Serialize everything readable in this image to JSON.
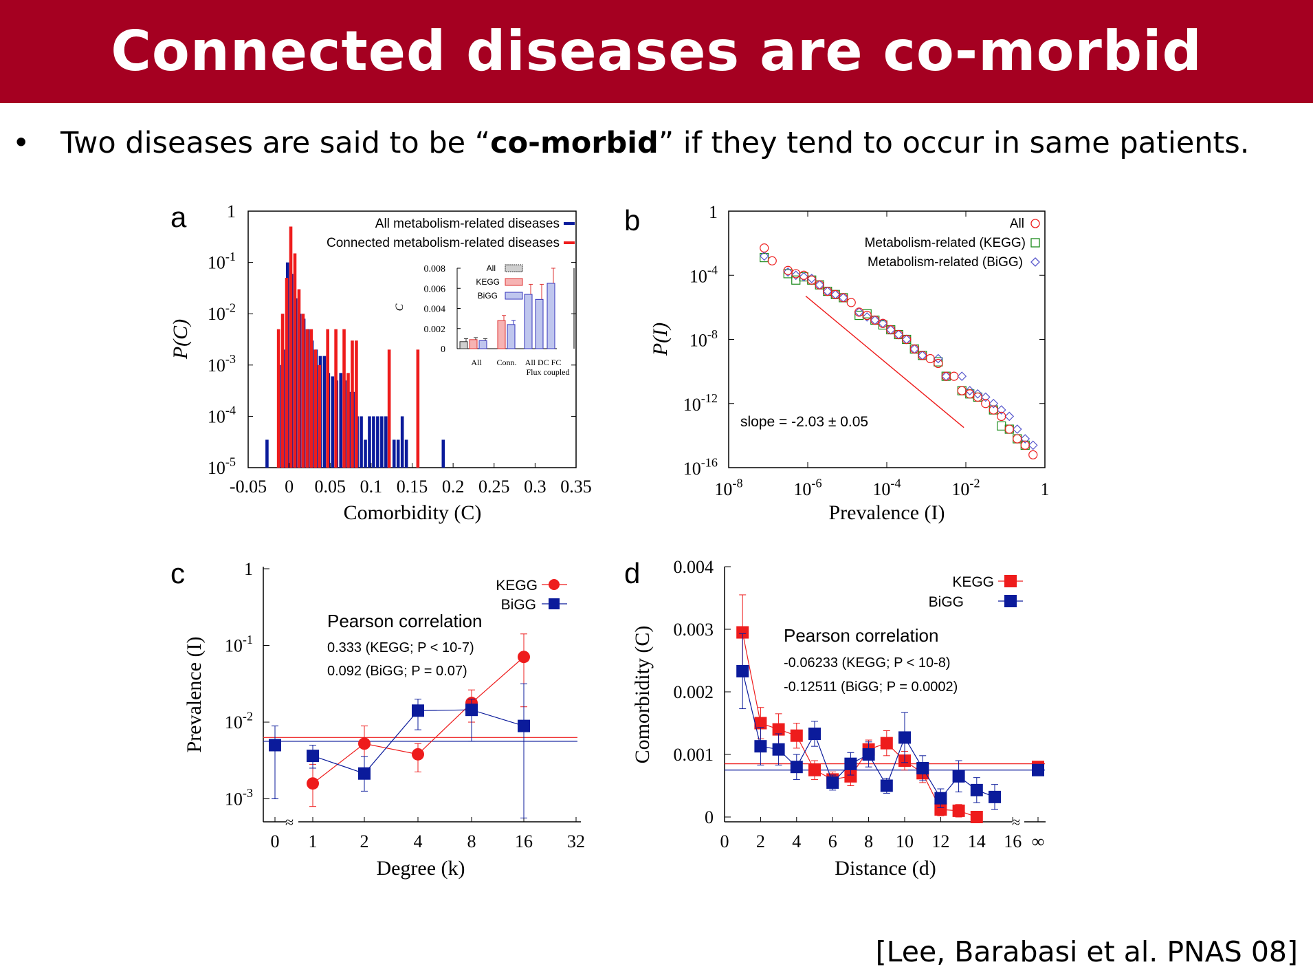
{
  "header": {
    "title": "Connected diseases are co-morbid"
  },
  "bullet": {
    "before": "Two diseases are said to be “",
    "bold": "co-morbid",
    "after": "” if they tend to occur in same patients."
  },
  "citation": "[Lee, Barabasi et al. PNAS 08]",
  "colors": {
    "banner": "#a50021",
    "red": "#ee1c1c",
    "blue": "#0b1b9b",
    "green": "#1a8a1a"
  },
  "chart_data": [
    {
      "panel": "a",
      "type": "bar",
      "xlabel": "Comorbidity (C)",
      "ylabel": "P(C)",
      "xlim": [
        -0.05,
        0.35
      ],
      "ylim_log10": [
        -5,
        0
      ],
      "x_ticks": [
        "-0.05",
        "0",
        "0.05",
        "0.1",
        "0.15",
        "0.2",
        "0.25",
        "0.3",
        "0.35"
      ],
      "y_ticks": [
        "1",
        "10-1",
        "10-2",
        "10-3",
        "10-4",
        "10-5"
      ],
      "series": [
        {
          "name": "All metabolism-related diseases",
          "x": [
            -0.025,
            -0.01,
            -0.005,
            0,
            0.005,
            0.01,
            0.015,
            0.02,
            0.025,
            0.03,
            0.035,
            0.04,
            0.045,
            0.05,
            0.055,
            0.06,
            0.065,
            0.07,
            0.075,
            0.08,
            0.085,
            0.09,
            0.095,
            0.1,
            0.105,
            0.11,
            0.115,
            0.12,
            0.13,
            0.135,
            0.14,
            0.145,
            0.19
          ],
          "values": [
            3.5e-05,
            0.001,
            0.002,
            0.1,
            0.06,
            0.02,
            0.01,
            0.008,
            0.005,
            0.003,
            0.002,
            0.0015,
            0.0015,
            0.0007,
            0.0006,
            0.0005,
            0.0007,
            0.0005,
            0.0003,
            0.0003,
            0.0001,
            0.0001,
            3.5e-05,
            0.0001,
            0.0001,
            0.0001,
            0.0001,
            0.0001,
            3.5e-05,
            3.5e-05,
            0.0001,
            3.5e-05,
            3.5e-05
          ]
        },
        {
          "name": "Connected metabolism-related diseases",
          "x": [
            -0.015,
            -0.01,
            -0.005,
            0,
            0.005,
            0.01,
            0.015,
            0.02,
            0.025,
            0.03,
            0.035,
            0.045,
            0.055,
            0.065,
            0.07,
            0.075,
            0.08,
            0.12,
            0.155
          ],
          "values": [
            0.005,
            0.01,
            0.05,
            0.5,
            0.15,
            0.03,
            0.01,
            0.005,
            0.005,
            0.002,
            0.001,
            0.005,
            0.005,
            0.005,
            0.0007,
            0.003,
            0.003,
            0.002,
            0.002
          ]
        }
      ],
      "inset": {
        "type": "bar",
        "ylabel": "C",
        "ylim": [
          0,
          0.008
        ],
        "y_ticks": [
          "0.008",
          "0.006",
          "0.004",
          "0.002",
          "0"
        ],
        "legend": [
          "All",
          "KEGG",
          "BiGG"
        ],
        "x_labels": [
          "All",
          "Conn.",
          "All DC FC"
        ],
        "x_sublabel": "Flux coupled",
        "bars": [
          {
            "group": "All",
            "series": "All",
            "value": 0.0007,
            "err": 0.0003
          },
          {
            "group": "All",
            "series": "KEGG",
            "value": 0.0009,
            "err": 0.0002
          },
          {
            "group": "All",
            "series": "BiGG",
            "value": 0.0008,
            "err": 0.0002
          },
          {
            "group": "Conn.",
            "series": "KEGG",
            "value": 0.0028,
            "err": 0.0005
          },
          {
            "group": "Conn.",
            "series": "BiGG",
            "value": 0.0024,
            "err": 0.0004
          },
          {
            "group": "All DC FC",
            "series": "All",
            "value": 0.0054,
            "err": 0.001
          },
          {
            "group": "All DC FC",
            "series": "DC",
            "value": 0.0049,
            "err": 0.0015
          },
          {
            "group": "All DC FC",
            "series": "FC",
            "value": 0.0065,
            "err": 0.0015
          }
        ]
      }
    },
    {
      "panel": "b",
      "type": "scatter",
      "xlabel": "Prevalence (I)",
      "ylabel": "P(I)",
      "xlim_log10": [
        -8,
        0
      ],
      "ylim_log10": [
        -16,
        0
      ],
      "x_ticks": [
        "10-8",
        "10-6",
        "10-4",
        "10-2",
        "1"
      ],
      "y_ticks": [
        "1",
        "10-4",
        "10-8",
        "10-12",
        "10-16"
      ],
      "annotation": "slope = -2.03 ± 0.05",
      "fit_line_log10": {
        "x": [
          -6.05,
          -2.05
        ],
        "y": [
          -5.3,
          -13.5
        ]
      },
      "series": [
        {
          "name": "All",
          "log10_x": [
            -7.1,
            -6.9,
            -6.5,
            -6.3,
            -6.1,
            -5.9,
            -5.7,
            -5.5,
            -5.3,
            -5.1,
            -4.9,
            -4.7,
            -4.5,
            -4.3,
            -4.1,
            -3.9,
            -3.7,
            -3.5,
            -3.3,
            -3.1,
            -2.9,
            -2.7,
            -2.5,
            -2.3,
            -2.1,
            -1.9,
            -1.7,
            -1.5,
            -1.3,
            -1.1,
            -0.9,
            -0.7,
            -0.5,
            -0.3
          ],
          "log10_y": [
            -2.3,
            -3.1,
            -3.7,
            -3.9,
            -4.0,
            -4.3,
            -4.6,
            -5.0,
            -5.2,
            -5.4,
            -5.7,
            -6.3,
            -6.5,
            -6.8,
            -7.0,
            -7.4,
            -7.7,
            -8.0,
            -8.6,
            -9.0,
            -9.2,
            -9.5,
            -10.3,
            -10.3,
            -11.2,
            -11.4,
            -11.6,
            -12.0,
            -12.4,
            -12.8,
            -13.6,
            -14.2,
            -14.6,
            -15.2
          ]
        },
        {
          "name": "Metabolism-related (KEGG)",
          "log10_x": [
            -7.1,
            -6.5,
            -6.3,
            -6.1,
            -5.9,
            -5.7,
            -5.5,
            -5.3,
            -5.1,
            -4.7,
            -4.5,
            -4.3,
            -4.1,
            -3.9,
            -3.7,
            -3.5,
            -3.3,
            -3.1,
            -2.7,
            -2.5,
            -2.1,
            -1.9,
            -1.7,
            -1.3,
            -1.1,
            -0.9,
            -0.7,
            -0.5
          ],
          "log10_y": [
            -2.9,
            -3.9,
            -4.3,
            -4.1,
            -4.3,
            -4.6,
            -5.0,
            -5.2,
            -5.4,
            -6.5,
            -6.4,
            -6.8,
            -7.1,
            -7.4,
            -7.7,
            -8.0,
            -8.6,
            -9.0,
            -9.4,
            -10.3,
            -11.2,
            -11.4,
            -11.6,
            -12.4,
            -13.4,
            -13.6,
            -14.2,
            -14.6
          ]
        },
        {
          "name": "Metabolism-related (BiGG)",
          "log10_x": [
            -7.1,
            -6.5,
            -6.3,
            -6.1,
            -5.9,
            -5.7,
            -5.5,
            -5.3,
            -5.1,
            -4.7,
            -4.5,
            -4.3,
            -4.1,
            -3.9,
            -3.7,
            -3.5,
            -3.3,
            -3.1,
            -2.7,
            -2.5,
            -2.1,
            -1.9,
            -1.7,
            -1.5,
            -1.3,
            -1.1,
            -0.9,
            -0.7,
            -0.5,
            -0.3
          ],
          "log10_y": [
            -2.8,
            -3.8,
            -4.0,
            -4.1,
            -4.2,
            -4.6,
            -5.0,
            -5.2,
            -5.4,
            -6.3,
            -6.6,
            -6.8,
            -7.0,
            -7.4,
            -7.7,
            -8.0,
            -8.6,
            -9.0,
            -9.2,
            -10.3,
            -10.3,
            -11.2,
            -11.4,
            -11.6,
            -12.0,
            -12.4,
            -12.8,
            -13.6,
            -14.2,
            -14.6
          ]
        }
      ]
    },
    {
      "panel": "c",
      "type": "line",
      "xlabel": "Degree (k)",
      "ylabel": "Prevalence (I)",
      "x_ticks": [
        "0",
        "1",
        "2",
        "4",
        "8",
        "16",
        "32"
      ],
      "y_ticks": [
        "1",
        "10-1",
        "10-2",
        "10-3"
      ],
      "ylim_log10": [
        -3.3,
        0
      ],
      "annotation": {
        "title": "Pearson correlation",
        "line1": "0.333 (KEGG; P < 10-7)",
        "line2": "0.092 (BiGG; P = 0.07)"
      },
      "series": [
        {
          "name": "KEGG",
          "x": [
            1,
            2,
            4,
            8,
            16
          ],
          "log10_y": [
            -2.8,
            -2.28,
            -2.42,
            -1.75,
            -1.15
          ],
          "log10_lo": [
            -3.1,
            -2.6,
            -2.65,
            -2.0,
            -1.8
          ],
          "log10_hi": [
            -2.55,
            -2.05,
            -2.28,
            -1.58,
            -0.85
          ],
          "ref_log10": -2.2
        },
        {
          "name": "BiGG",
          "x": [
            0,
            1,
            2,
            4,
            8,
            16
          ],
          "log10_y": [
            -2.3,
            -2.44,
            -2.67,
            -1.85,
            -1.84,
            -2.05
          ],
          "log10_lo": [
            -3.0,
            -2.6,
            -2.9,
            -2.1,
            -2.25,
            -3.25
          ],
          "log10_hi": [
            -2.05,
            -2.3,
            -2.45,
            -1.7,
            -1.7,
            -1.5
          ],
          "ref_log10": -2.25
        }
      ]
    },
    {
      "panel": "d",
      "type": "line",
      "xlabel": "Distance (d)",
      "ylabel": "Comorbidity (C)",
      "x_ticks": [
        "0",
        "2",
        "4",
        "6",
        "8",
        "10",
        "12",
        "14",
        "16",
        "∞"
      ],
      "y_ticks": [
        "0.004",
        "0.003",
        "0.002",
        "0.001",
        "0"
      ],
      "ylim": [
        0,
        0.004
      ],
      "annotation": {
        "title": "Pearson correlation",
        "line1": "-0.06233 (KEGG; P < 10-8)",
        "line2": "-0.12511 (BiGG; P = 0.0002)"
      },
      "series": [
        {
          "name": "KEGG",
          "x": [
            1,
            2,
            3,
            4,
            5,
            6,
            7,
            8,
            9,
            10,
            11,
            12,
            13,
            14
          ],
          "values": [
            0.00295,
            0.0015,
            0.0014,
            0.0013,
            0.00075,
            0.0006,
            0.00065,
            0.00108,
            0.00118,
            0.0009,
            0.0007,
            0.00012,
            0.0001,
            0.0
          ],
          "err": [
            0.0006,
            0.00025,
            0.00025,
            0.0002,
            0.00015,
            0.00012,
            0.00015,
            0.00015,
            0.0002,
            0.00015,
            0.00015,
            0.0001,
            0.0001,
            5e-05
          ],
          "ref": 0.00085,
          "inf": 0.0008
        },
        {
          "name": "BiGG",
          "x": [
            1,
            2,
            3,
            4,
            5,
            6,
            7,
            8,
            9,
            10,
            11,
            12,
            13,
            14,
            15
          ],
          "values": [
            0.00233,
            0.00113,
            0.00108,
            0.0008,
            0.00133,
            0.00055,
            0.00085,
            0.001,
            0.0005,
            0.00127,
            0.00078,
            0.0003,
            0.00065,
            0.00043,
            0.00032
          ],
          "err": [
            0.0006,
            0.0003,
            0.00025,
            0.0002,
            0.0002,
            0.00012,
            0.00018,
            0.0002,
            0.00012,
            0.0004,
            0.0002,
            0.00015,
            0.00025,
            0.0002,
            0.0002
          ],
          "ref": 0.00075,
          "inf": 0.00075
        }
      ]
    }
  ]
}
